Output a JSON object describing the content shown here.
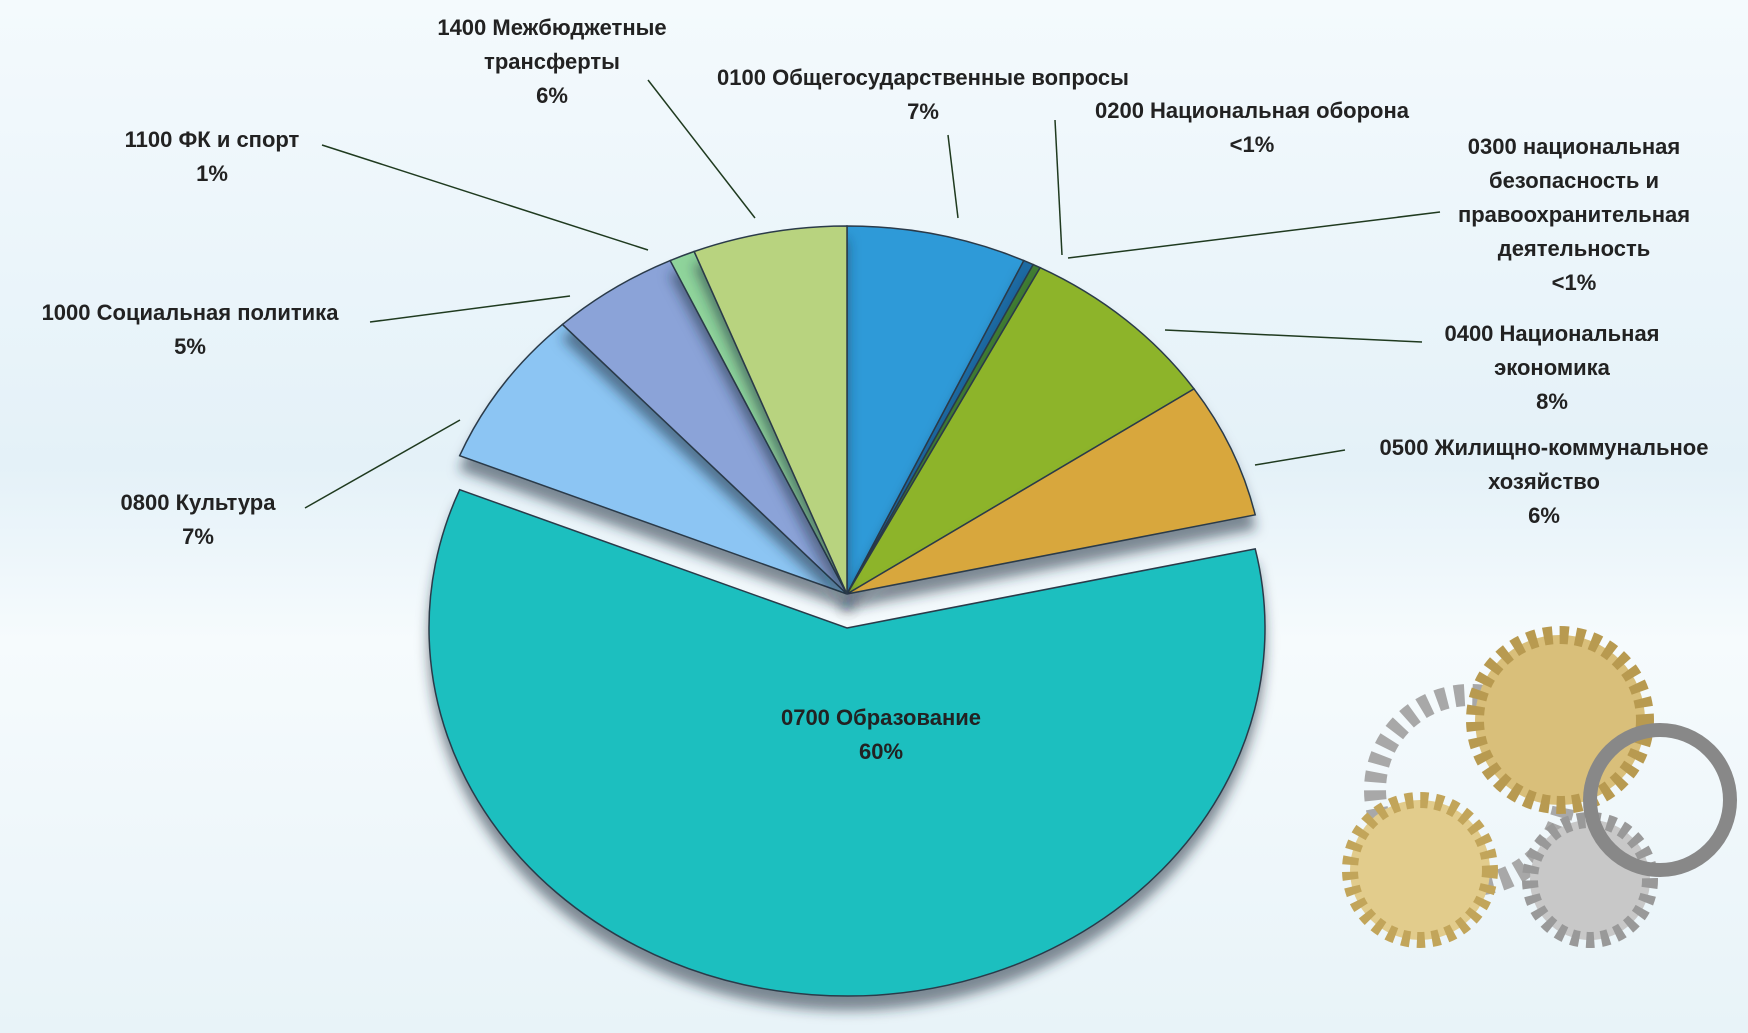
{
  "chart_data": {
    "type": "pie",
    "categories": [
      "0100 Общегосударственные вопросы",
      "0200 Национальная  оборона",
      "0300 национальная безопасность и правоохранительная деятельность",
      "0400 Национальная экономика",
      "0500 Жилищно-коммунальное хозяйство",
      "0700 Образование",
      "0800 Культура",
      "1000 Социальная политика",
      "1100 ФК и спорт",
      "1400 Межбюджетные трансферты"
    ],
    "values": [
      7,
      0.4,
      0.3,
      8,
      6,
      60,
      7,
      5,
      1,
      6
    ],
    "value_labels": [
      "7%",
      "<1%",
      "<1%",
      "8%",
      "6%",
      "60%",
      "7%",
      "5%",
      "1%",
      "6%"
    ],
    "colors": [
      "#2f9ad8",
      "#1e6aa3",
      "#3f7d32",
      "#8db42a",
      "#d8a73c",
      "#1bbfbf",
      "#8cc5f3",
      "#8ba3d8",
      "#8fd49b",
      "#b8d37f"
    ],
    "exploded": "0700 Образование"
  }
}
